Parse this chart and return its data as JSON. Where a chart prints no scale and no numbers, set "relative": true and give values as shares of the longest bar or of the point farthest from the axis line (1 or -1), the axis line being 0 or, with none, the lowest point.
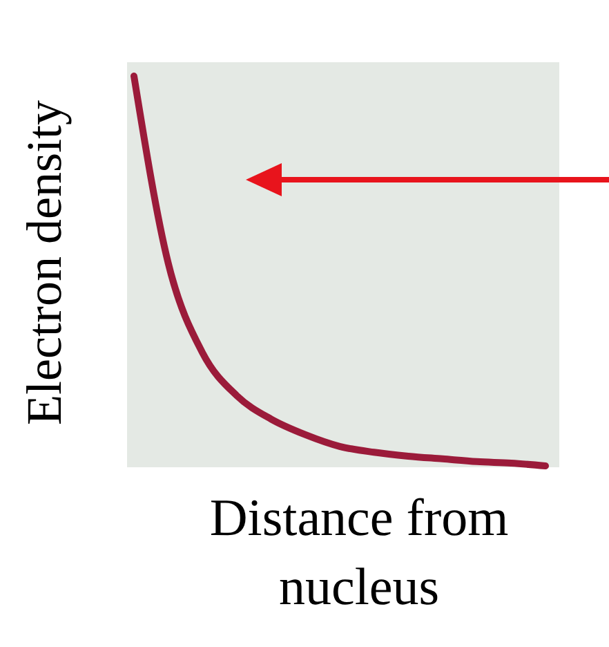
{
  "chart_data": {
    "type": "line",
    "relative": true,
    "xlabel": "Distance from nucleus",
    "ylabel": "Electron density",
    "categories": [
      null,
      null,
      null,
      null,
      null,
      null,
      null,
      null,
      null,
      null,
      null,
      null,
      null
    ],
    "values": [
      1,
      0.52,
      0.29,
      0.18,
      0.12,
      0.08,
      0.05,
      0.035,
      0.025,
      0.018,
      0.011,
      0.007,
      0
    ],
    "color": "#9b1b3a",
    "marker": "none"
  }
}
